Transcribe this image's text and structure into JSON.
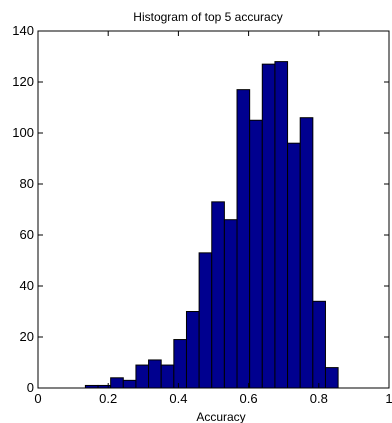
{
  "chart_data": {
    "type": "bar",
    "subtype": "histogram",
    "title": "Histogram of top 5 accuracy",
    "xlabel": "Accuracy",
    "ylabel": "",
    "xlim": [
      0,
      1
    ],
    "ylim": [
      0,
      140
    ],
    "grid": false,
    "legend": "none",
    "bar_color": "#00008f",
    "bar_edge_color": "#000000",
    "x_ticks": [
      0,
      0.2,
      0.4,
      0.6,
      0.8,
      1
    ],
    "x_tick_labels": [
      "0",
      "0.2",
      "0.4",
      "0.6",
      "0.8",
      "1"
    ],
    "y_ticks": [
      0,
      20,
      40,
      60,
      80,
      100,
      120,
      140
    ],
    "y_tick_labels": [
      "0",
      "20",
      "40",
      "60",
      "80",
      "100",
      "120",
      "140"
    ],
    "bins": [
      {
        "x0": 0.135,
        "x1": 0.171,
        "count": 1
      },
      {
        "x0": 0.171,
        "x1": 0.207,
        "count": 1
      },
      {
        "x0": 0.207,
        "x1": 0.243,
        "count": 4
      },
      {
        "x0": 0.243,
        "x1": 0.279,
        "count": 3
      },
      {
        "x0": 0.279,
        "x1": 0.315,
        "count": 9
      },
      {
        "x0": 0.315,
        "x1": 0.351,
        "count": 11
      },
      {
        "x0": 0.351,
        "x1": 0.387,
        "count": 9
      },
      {
        "x0": 0.387,
        "x1": 0.423,
        "count": 19
      },
      {
        "x0": 0.423,
        "x1": 0.459,
        "count": 30
      },
      {
        "x0": 0.459,
        "x1": 0.495,
        "count": 53
      },
      {
        "x0": 0.495,
        "x1": 0.531,
        "count": 73
      },
      {
        "x0": 0.531,
        "x1": 0.567,
        "count": 66
      },
      {
        "x0": 0.567,
        "x1": 0.603,
        "count": 117
      },
      {
        "x0": 0.603,
        "x1": 0.639,
        "count": 105
      },
      {
        "x0": 0.639,
        "x1": 0.675,
        "count": 127
      },
      {
        "x0": 0.675,
        "x1": 0.711,
        "count": 128
      },
      {
        "x0": 0.711,
        "x1": 0.747,
        "count": 96
      },
      {
        "x0": 0.747,
        "x1": 0.783,
        "count": 106
      },
      {
        "x0": 0.783,
        "x1": 0.819,
        "count": 34
      },
      {
        "x0": 0.819,
        "x1": 0.855,
        "count": 8
      }
    ]
  }
}
